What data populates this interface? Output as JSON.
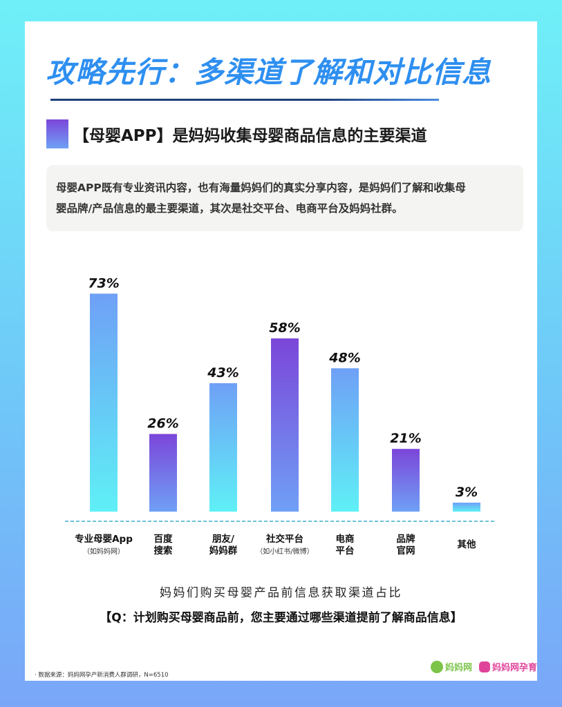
{
  "header": {
    "title": "攻略先行：多渠道了解和对比信息",
    "subtitle": "【母婴APP】是妈妈收集母婴商品信息的主要渠道"
  },
  "description": {
    "line1": "母婴APP既有专业资讯内容，也有海量妈妈们的真实分享内容，是妈妈们了解和收集母",
    "line2": "婴品牌/产品信息的最主要渠道，其次是社交平台、电商平台及妈妈社群。"
  },
  "chart_data": {
    "type": "bar",
    "categories": [
      "专业母婴App",
      "百度搜索",
      "朋友/妈妈群",
      "社交平台",
      "电商平台",
      "品牌官网",
      "其他"
    ],
    "category_lines": [
      [
        "专业母婴App"
      ],
      [
        "百度",
        "搜索"
      ],
      [
        "朋友/",
        "妈妈群"
      ],
      [
        "社交平台"
      ],
      [
        "电商",
        "平台"
      ],
      [
        "品牌",
        "官网"
      ],
      [
        "其他"
      ]
    ],
    "category_notes": [
      "（如妈妈网）",
      "",
      "",
      "（如小红书/微博）",
      "",
      "",
      ""
    ],
    "values": [
      73,
      26,
      43,
      58,
      48,
      21,
      3
    ],
    "value_labels": [
      "73%",
      "26%",
      "43%",
      "58%",
      "48%",
      "21%",
      "3%"
    ],
    "unit": "%",
    "ylim": [
      0,
      80
    ],
    "bar_styles": [
      "cyan",
      "purple",
      "cyan",
      "purple",
      "cyan",
      "purple",
      "cyan"
    ],
    "colors": {
      "cyan_top": "#6fa0f6",
      "cyan_bottom": "#5ff0f6",
      "purple_top": "#7b46d9",
      "purple_bottom": "#6fa0f6",
      "baseline": "#3aaecc"
    },
    "grid": false,
    "title": "妈妈们购买母婴产品前信息获取渠道占比"
  },
  "footer": {
    "question": "【Q：计划购买母婴商品前，您主要通过哪些渠道提前了解商品信息】",
    "source": "·  数据来源：妈妈网孕产新消费人群调研，N=6510",
    "logo1": "妈妈网",
    "logo2": "妈妈网孕育"
  }
}
